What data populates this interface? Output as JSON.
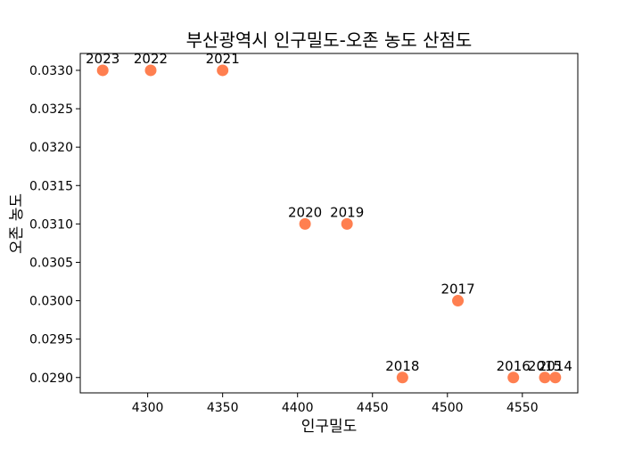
{
  "chart_data": {
    "type": "scatter",
    "title": "부산광역시 인구밀도-오존 농도 산점도",
    "xlabel": "인구밀도",
    "ylabel": "오존 농도",
    "xlim": [
      4255,
      4587
    ],
    "ylim": [
      0.0288,
      0.03322
    ],
    "xticks": [
      4300,
      4350,
      4400,
      4450,
      4500,
      4550
    ],
    "yticks": [
      0.029,
      0.0295,
      0.03,
      0.0305,
      0.031,
      0.0315,
      0.032,
      0.0325,
      0.033
    ],
    "point_color": "#ff7f50",
    "grid": false,
    "points": [
      {
        "label": "2014",
        "x": 4572,
        "y": 0.029
      },
      {
        "label": "2015",
        "x": 4565,
        "y": 0.029
      },
      {
        "label": "2016",
        "x": 4544,
        "y": 0.029
      },
      {
        "label": "2017",
        "x": 4507,
        "y": 0.03
      },
      {
        "label": "2018",
        "x": 4470,
        "y": 0.029
      },
      {
        "label": "2019",
        "x": 4433,
        "y": 0.031
      },
      {
        "label": "2020",
        "x": 4405,
        "y": 0.031
      },
      {
        "label": "2021",
        "x": 4350,
        "y": 0.033
      },
      {
        "label": "2022",
        "x": 4302,
        "y": 0.033
      },
      {
        "label": "2023",
        "x": 4270,
        "y": 0.033
      }
    ]
  }
}
